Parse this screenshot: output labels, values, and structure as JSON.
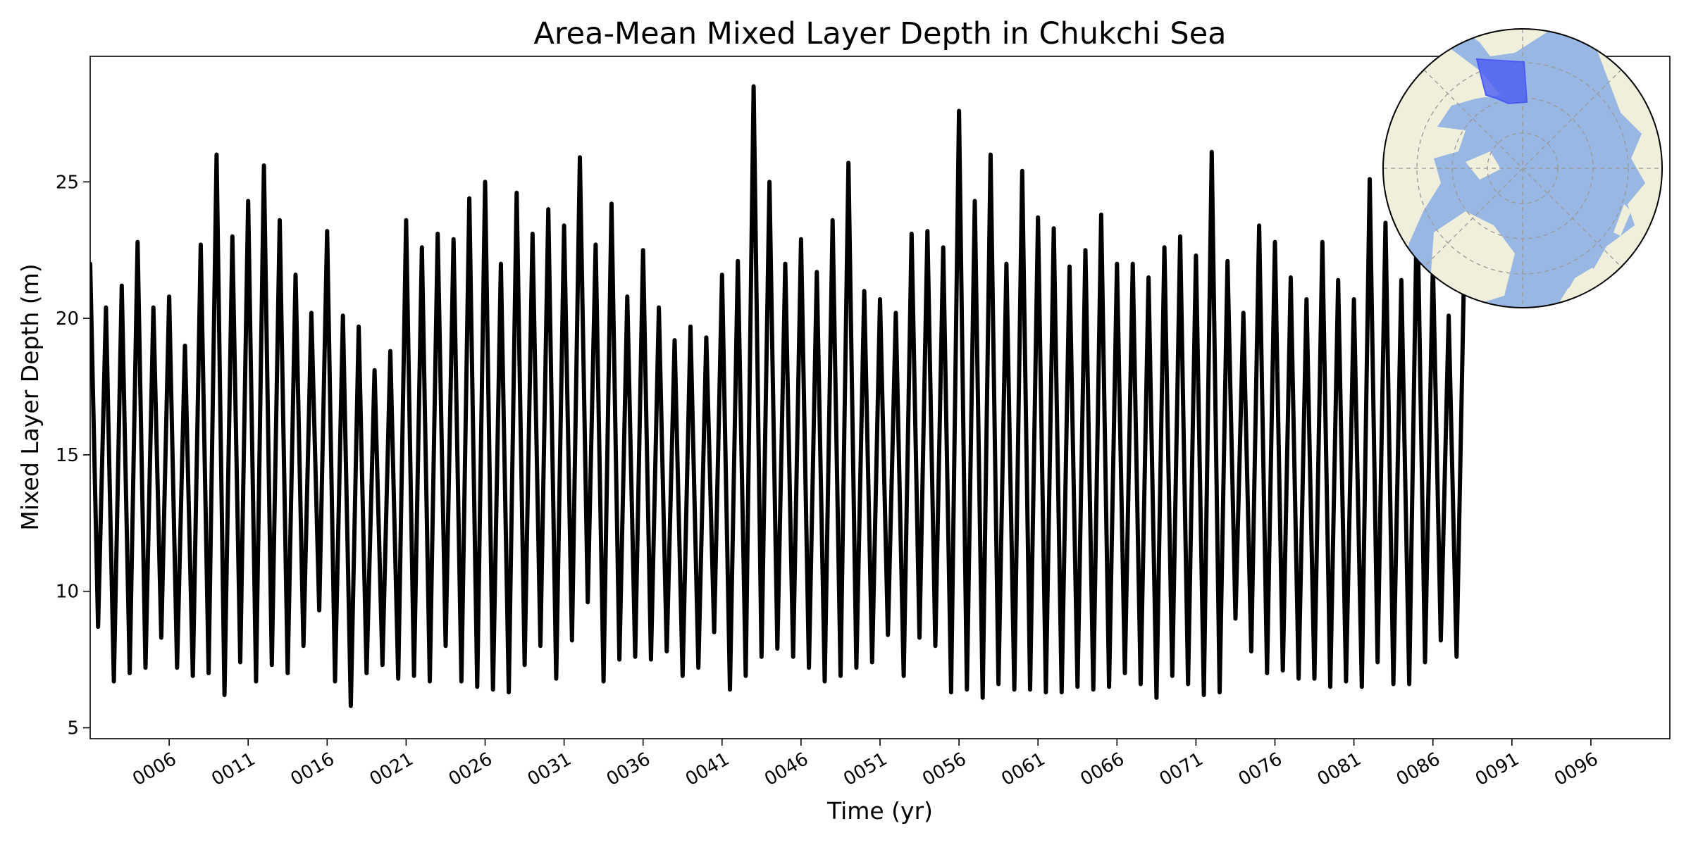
{
  "chart_data": {
    "type": "line",
    "title": "Area-Mean Mixed Layer Depth in Chukchi Sea",
    "xlabel": "Time (yr)",
    "ylabel": "Mixed Layer Depth (m)",
    "xlim": [
      1.0,
      101.0
    ],
    "ylim": [
      4.6,
      29.6
    ],
    "x_ticks": [
      6,
      11,
      16,
      21,
      26,
      31,
      36,
      41,
      46,
      51,
      56,
      61,
      66,
      71,
      76,
      81,
      86,
      91,
      96
    ],
    "x_tick_labels": [
      "0006",
      "0011",
      "0016",
      "0021",
      "0026",
      "0031",
      "0036",
      "0041",
      "0046",
      "0051",
      "0056",
      "0061",
      "0066",
      "0071",
      "0076",
      "0081",
      "0086",
      "0091",
      "0096"
    ],
    "y_ticks": [
      5,
      10,
      15,
      20,
      25
    ],
    "y_tick_labels": [
      "5",
      "10",
      "15",
      "20",
      "25"
    ],
    "grid": false,
    "legend": "none",
    "line_color": "#000000",
    "series": [
      {
        "x_start": 1.0,
        "x_step": 0.5,
        "values": [
          22.0,
          8.7,
          20.4,
          6.7,
          21.2,
          7.0,
          22.8,
          7.2,
          20.4,
          8.3,
          20.8,
          7.2,
          19.0,
          6.9,
          22.7,
          7.0,
          26.0,
          6.2,
          23.0,
          7.4,
          24.3,
          6.7,
          25.6,
          7.3,
          23.6,
          7.0,
          21.6,
          8.0,
          20.2,
          9.3,
          23.2,
          6.7,
          20.1,
          5.8,
          19.7,
          7.0,
          18.1,
          7.3,
          18.8,
          6.8,
          23.6,
          6.9,
          22.6,
          6.7,
          23.1,
          8.0,
          22.9,
          6.7,
          24.4,
          6.5,
          25.0,
          6.4,
          22.0,
          6.3,
          24.6,
          7.3,
          23.1,
          8.0,
          24.0,
          6.8,
          23.4,
          8.2,
          25.9,
          9.6,
          22.7,
          6.7,
          24.2,
          7.5,
          20.8,
          7.6,
          22.5,
          7.5,
          20.4,
          7.8,
          19.2,
          6.9,
          19.7,
          7.2,
          19.3,
          8.5,
          21.6,
          6.4,
          22.1,
          6.9,
          28.5,
          7.6,
          25.0,
          7.9,
          22.0,
          7.6,
          22.9,
          7.2,
          21.7,
          6.7,
          23.6,
          6.9,
          25.7,
          7.2,
          21.0,
          7.4,
          20.7,
          8.4,
          20.2,
          6.9,
          23.1,
          8.3,
          23.2,
          8.0,
          22.6,
          6.3,
          27.6,
          6.4,
          24.3,
          6.1,
          26.0,
          6.6,
          22.0,
          6.4,
          25.4,
          6.4,
          23.7,
          6.3,
          23.3,
          6.3,
          21.9,
          6.5,
          22.5,
          6.4,
          23.8,
          6.5,
          22.0,
          7.0,
          22.0,
          6.6,
          21.5,
          6.1,
          22.6,
          6.9,
          23.0,
          6.6,
          22.3,
          6.2,
          26.1,
          6.3,
          22.1,
          9.0,
          20.2,
          7.8,
          23.4,
          7.0,
          22.8,
          7.1,
          21.5,
          6.8,
          20.7,
          6.8,
          22.8,
          6.5,
          21.4,
          6.7,
          20.7,
          6.5,
          25.1,
          7.4,
          23.5,
          6.6,
          21.4,
          6.6,
          24.7,
          7.4,
          22.0,
          8.2,
          20.1,
          7.6,
          22.5
        ]
      }
    ]
  },
  "inset_map": {
    "projection": "north-polar-stereographic",
    "ocean_color": "#98b7e2",
    "land_color": "#efefdb",
    "region_color": "#4b5cf2",
    "border_color": "#000000",
    "gridline_color": "#999999"
  }
}
